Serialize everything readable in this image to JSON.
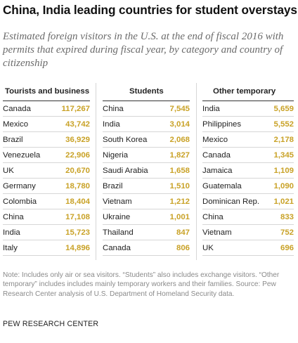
{
  "title": "China, India leading countries for student overstays",
  "subtitle": "Estimated foreign visitors in the U.S. at the end of fiscal 2016 with permits that expired during fiscal year, by category and country of citizenship",
  "colors": {
    "value": "#c9a227",
    "rule": "#d6d6d6",
    "subtitle": "#6b6b6b",
    "note": "#8a8a8a"
  },
  "chart_data": {
    "type": "table",
    "title": "China, India leading countries for student overstays",
    "columns": [
      {
        "header": "Tourists and business",
        "rows": [
          {
            "country": "Canada",
            "value": "117,267"
          },
          {
            "country": "Mexico",
            "value": "43,742"
          },
          {
            "country": "Brazil",
            "value": "36,929"
          },
          {
            "country": "Venezuela",
            "value": "22,906"
          },
          {
            "country": "UK",
            "value": "20,670"
          },
          {
            "country": "Germany",
            "value": "18,780"
          },
          {
            "country": "Colombia",
            "value": "18,404"
          },
          {
            "country": "China",
            "value": "17,108"
          },
          {
            "country": "India",
            "value": "15,723"
          },
          {
            "country": "Italy",
            "value": "14,896"
          }
        ]
      },
      {
        "header": "Students",
        "rows": [
          {
            "country": "China",
            "value": "7,545"
          },
          {
            "country": "India",
            "value": "3,014"
          },
          {
            "country": "South Korea",
            "value": "2,068"
          },
          {
            "country": "Nigeria",
            "value": "1,827"
          },
          {
            "country": "Saudi Arabia",
            "value": "1,658"
          },
          {
            "country": "Brazil",
            "value": "1,510"
          },
          {
            "country": "Vietnam",
            "value": "1,212"
          },
          {
            "country": "Ukraine",
            "value": "1,001"
          },
          {
            "country": "Thailand",
            "value": "847"
          },
          {
            "country": "Canada",
            "value": "806"
          }
        ]
      },
      {
        "header": "Other temporary",
        "rows": [
          {
            "country": "India",
            "value": "5,659"
          },
          {
            "country": "Philippines",
            "value": "5,552"
          },
          {
            "country": "Mexico",
            "value": "2,178"
          },
          {
            "country": "Canada",
            "value": "1,345"
          },
          {
            "country": "Jamaica",
            "value": "1,109"
          },
          {
            "country": "Guatemala",
            "value": "1,090"
          },
          {
            "country": "Dominican Rep.",
            "value": "1,021"
          },
          {
            "country": "China",
            "value": "833"
          },
          {
            "country": "Vietnam",
            "value": "752"
          },
          {
            "country": "UK",
            "value": "696"
          }
        ]
      }
    ]
  },
  "note": "Note: Includes only air or sea visitors. “Students” also includes exchange visitors. “Other temporary” includes includes mainly temporary workers and their families. Source: Pew Research Center analysis of U.S. Department of Homeland Security data.",
  "credit": "PEW RESEARCH CENTER"
}
